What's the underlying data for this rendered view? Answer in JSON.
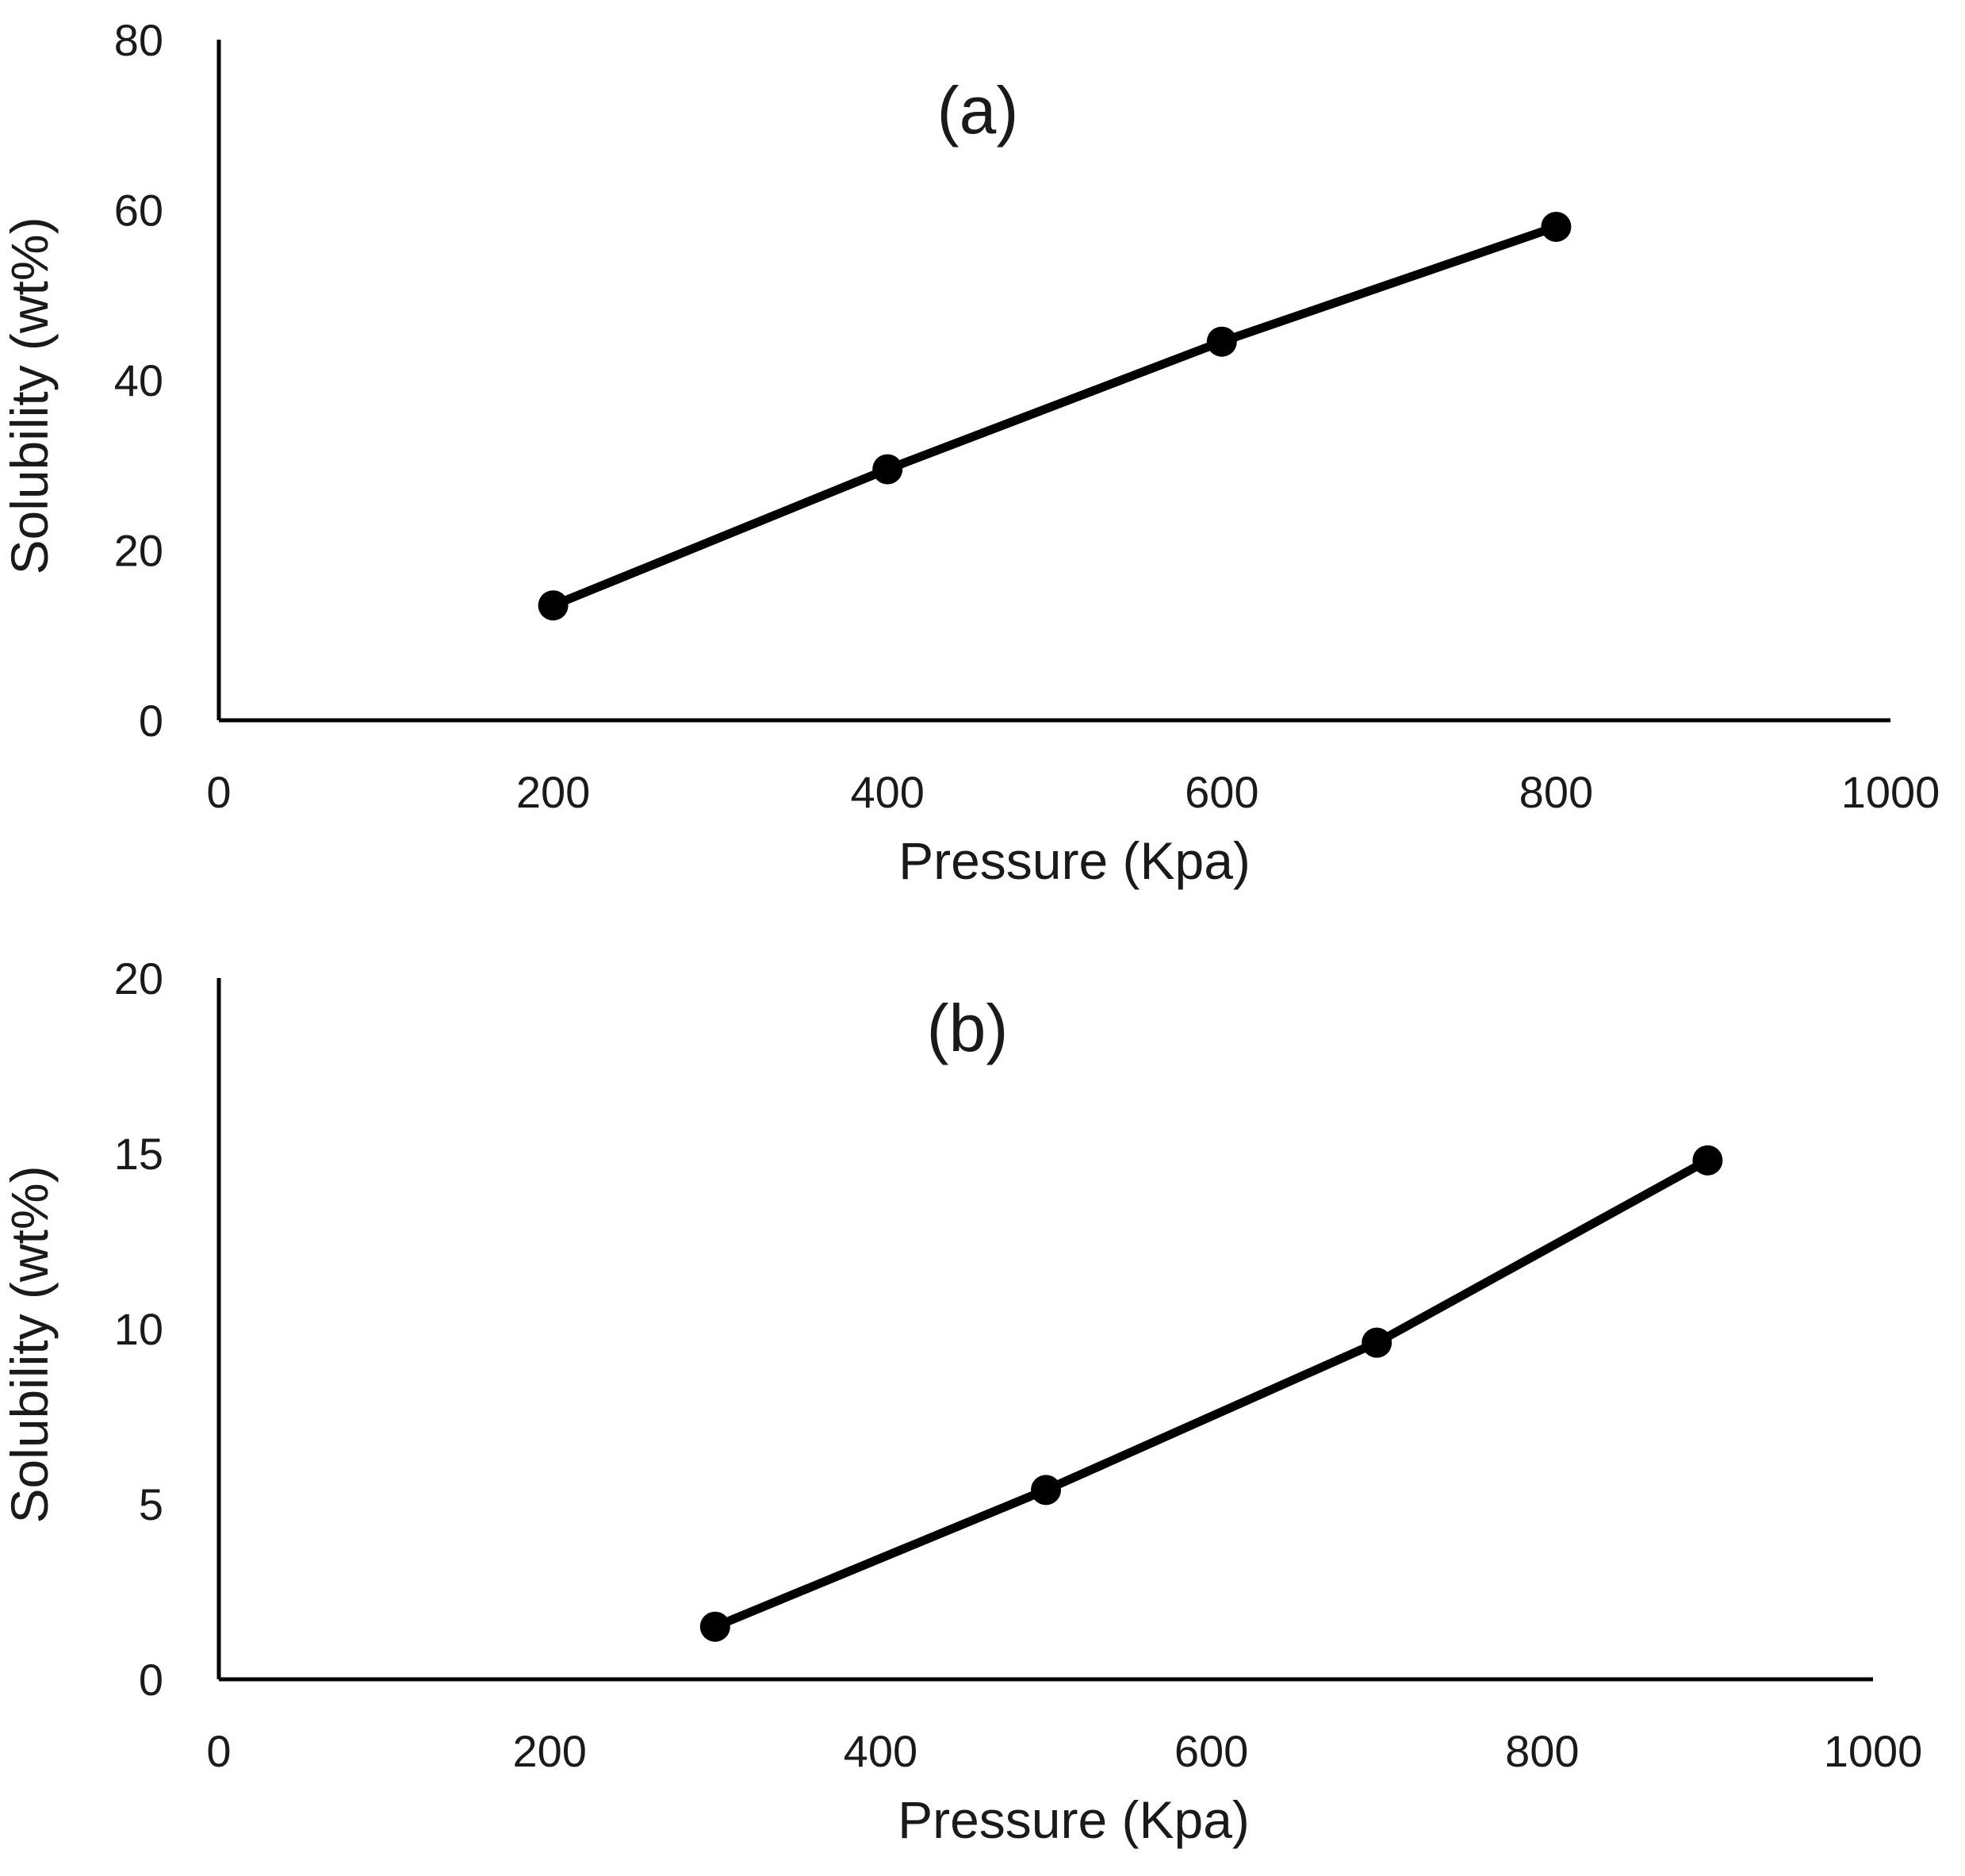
{
  "chart_data": [
    {
      "type": "line",
      "panel_label": "(a)",
      "xlabel": "Pressure (Kpa)",
      "ylabel": "Solubility (wt%)",
      "xlim": [
        0,
        1000
      ],
      "ylim": [
        0,
        80
      ],
      "xticks": [
        0,
        200,
        400,
        600,
        800,
        1000
      ],
      "yticks": [
        0,
        20,
        40,
        60,
        80
      ],
      "grid": false,
      "series": [
        {
          "name": "solubility",
          "x": [
            200,
            400,
            600,
            800
          ],
          "y": [
            13.5,
            29.5,
            44.5,
            58.0
          ]
        }
      ],
      "colors": {
        "line": "#000000",
        "marker": "#000000"
      }
    },
    {
      "type": "line",
      "panel_label": "(b)",
      "xlabel": "Pressure (Kpa)",
      "ylabel": "Solubility (wt%)",
      "xlim": [
        0,
        1000
      ],
      "ylim": [
        0,
        20
      ],
      "xticks": [
        0,
        200,
        400,
        600,
        800,
        1000
      ],
      "yticks": [
        0,
        5,
        10,
        15,
        20
      ],
      "grid": false,
      "series": [
        {
          "name": "solubility",
          "x": [
            300,
            500,
            700,
            900
          ],
          "y": [
            1.5,
            5.4,
            9.6,
            14.8
          ]
        }
      ],
      "colors": {
        "line": "#000000",
        "marker": "#000000"
      }
    }
  ]
}
